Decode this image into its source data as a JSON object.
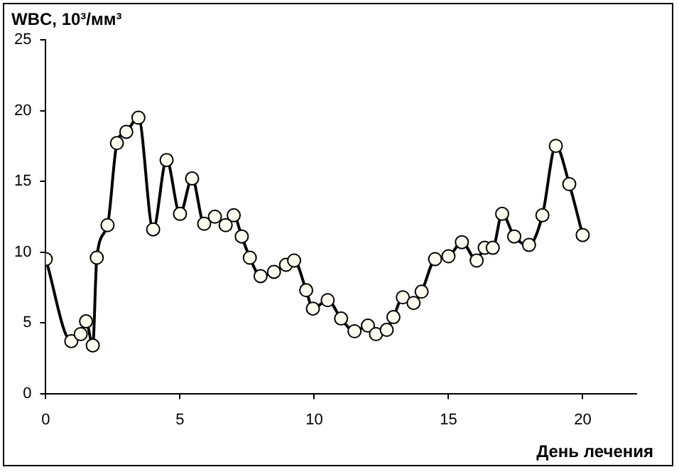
{
  "chart_data": {
    "type": "line",
    "ylabel": "WBC, 10³/мм³",
    "xlabel": "День лечения",
    "x": [
      0,
      0.95,
      1.3,
      1.5,
      1.75,
      1.9,
      2.3,
      2.65,
      3.0,
      3.45,
      4.0,
      4.5,
      5.0,
      5.45,
      5.9,
      6.3,
      6.7,
      7.0,
      7.3,
      7.6,
      8.0,
      8.5,
      8.95,
      9.25,
      9.7,
      9.95,
      10.5,
      11.0,
      11.5,
      12.0,
      12.3,
      12.7,
      12.95,
      13.3,
      13.7,
      14.0,
      14.5,
      15.0,
      15.5,
      16.05,
      16.35,
      16.65,
      17.0,
      17.45,
      18.0,
      18.5,
      19.0,
      19.5,
      20.0
    ],
    "series": [
      {
        "color": "#000000",
        "values": [
          9.5,
          3.7,
          4.2,
          5.1,
          3.4,
          9.6,
          11.9,
          17.7,
          18.5,
          19.5,
          11.6,
          16.5,
          12.7,
          15.2,
          12.0,
          12.5,
          11.9,
          12.6,
          11.1,
          9.6,
          8.3,
          8.6,
          9.1,
          9.4,
          7.3,
          6.0,
          6.6,
          5.3,
          4.4,
          4.8,
          4.2,
          4.5,
          5.4,
          6.8,
          6.4,
          7.2,
          9.5,
          9.7,
          10.7,
          9.4,
          10.3,
          10.3,
          12.7,
          11.1,
          10.5,
          12.6,
          17.5,
          14.8,
          11.2
        ]
      }
    ],
    "xlim": [
      0,
      22
    ],
    "xticks": [
      0,
      5,
      10,
      15,
      20
    ],
    "ylim": [
      0,
      25
    ],
    "yticks": [
      0,
      5,
      10,
      15,
      20,
      25
    ],
    "grid": false,
    "legend": false,
    "marker": "circle",
    "line_style": "solid"
  }
}
